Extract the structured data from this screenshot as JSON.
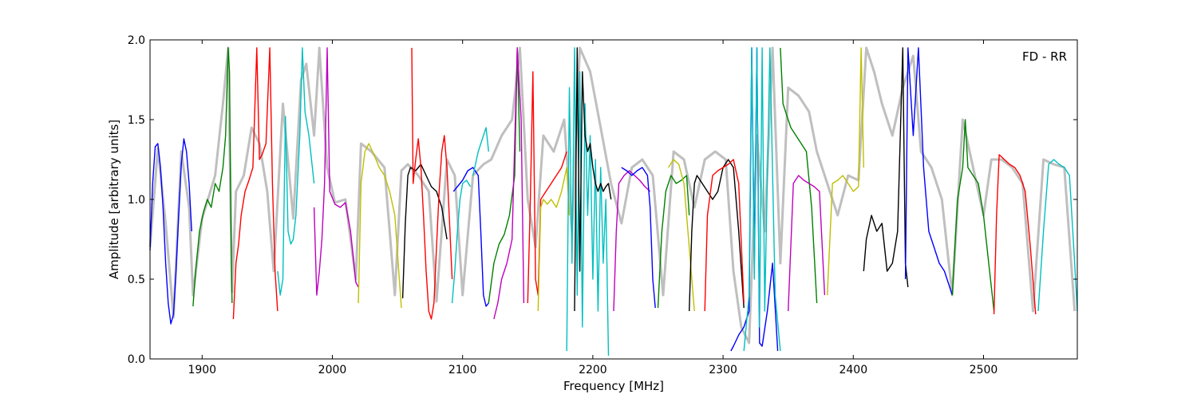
{
  "chart_data": {
    "type": "line",
    "annotation": "FD - RR",
    "xlabel": "Frequency [MHz]",
    "ylabel": "Amplitude [arbitrary units]",
    "xlim": [
      1860,
      2572
    ],
    "ylim": [
      0.0,
      2.0
    ],
    "x_ticks": [
      1900,
      2000,
      2100,
      2200,
      2300,
      2400,
      2500
    ],
    "y_ticks": [
      0.0,
      0.5,
      1.0,
      1.5,
      2.0
    ],
    "x_tick_labels": [
      "1900",
      "2000",
      "2100",
      "2200",
      "2300",
      "2400",
      "2500"
    ],
    "y_tick_labels": [
      "0.0",
      "0.5",
      "1.0",
      "1.5",
      "2.0"
    ],
    "grid": false,
    "background_series": {
      "color": "#bfbfbf",
      "x": [
        1860,
        1866,
        1872,
        1878,
        1884,
        1890,
        1893,
        1900,
        1910,
        1916,
        1920,
        1923,
        1926,
        1932,
        1938,
        1944,
        1950,
        1955,
        1962,
        1970,
        1976,
        1980,
        1986,
        1990,
        1996,
        2002,
        2010,
        2018,
        2022,
        2030,
        2040,
        2048,
        2053,
        2058,
        2066,
        2074,
        2080,
        2088,
        2094,
        2100,
        2108,
        2116,
        2122,
        2130,
        2138,
        2144,
        2150,
        2156,
        2162,
        2170,
        2178,
        2184,
        2190,
        2198,
        2206,
        2214,
        2222,
        2230,
        2238,
        2246,
        2254,
        2262,
        2270,
        2278,
        2286,
        2294,
        2302,
        2308,
        2314,
        2320,
        2326,
        2332,
        2338,
        2344,
        2350,
        2358,
        2366,
        2372,
        2380,
        2388,
        2396,
        2404,
        2410,
        2416,
        2422,
        2430,
        2438,
        2446,
        2452,
        2460,
        2468,
        2476,
        2484,
        2492,
        2500,
        2506,
        2514,
        2522,
        2530,
        2538,
        2546,
        2554,
        2562,
        2570
      ],
      "y": [
        0.7,
        1.32,
        0.85,
        0.26,
        1.3,
        0.95,
        0.4,
        0.88,
        1.15,
        1.6,
        1.95,
        0.42,
        1.05,
        1.15,
        1.45,
        1.35,
        1.05,
        0.55,
        1.6,
        0.88,
        1.75,
        1.85,
        1.4,
        1.95,
        1.2,
        0.98,
        1.0,
        0.5,
        1.35,
        1.3,
        1.2,
        0.4,
        1.18,
        1.22,
        1.15,
        1.05,
        0.36,
        1.25,
        1.15,
        0.4,
        1.15,
        1.22,
        1.25,
        1.4,
        1.5,
        1.95,
        1.0,
        0.7,
        1.4,
        1.3,
        1.5,
        0.8,
        1.95,
        1.8,
        1.45,
        1.1,
        0.85,
        1.2,
        1.25,
        1.15,
        0.4,
        1.3,
        1.25,
        0.95,
        1.25,
        1.3,
        1.25,
        0.55,
        0.2,
        0.1,
        1.4,
        0.8,
        1.95,
        0.6,
        1.7,
        1.65,
        1.55,
        1.3,
        1.1,
        0.9,
        1.15,
        1.12,
        1.95,
        1.8,
        1.6,
        1.4,
        1.7,
        1.9,
        1.3,
        1.2,
        1.0,
        0.4,
        1.5,
        1.2,
        0.9,
        1.25,
        1.25,
        1.2,
        1.1,
        0.3,
        1.25,
        1.22,
        1.2,
        0.3
      ]
    },
    "series": [
      {
        "color": "#0000ff",
        "x": [
          1860,
          1862,
          1864,
          1866,
          1868,
          1870,
          1872,
          1874,
          1876,
          1878,
          1880,
          1882,
          1884,
          1886,
          1888,
          1890,
          1892
        ],
        "y": [
          0.68,
          1.1,
          1.33,
          1.35,
          1.2,
          0.95,
          0.6,
          0.35,
          0.22,
          0.28,
          0.55,
          0.9,
          1.22,
          1.38,
          1.3,
          1.1,
          0.8
        ]
      },
      {
        "color": "#008000",
        "x": [
          1893,
          1895,
          1898,
          1901,
          1904,
          1907,
          1910,
          1913,
          1916,
          1918,
          1920,
          1921,
          1922,
          1923
        ],
        "y": [
          0.33,
          0.55,
          0.8,
          0.92,
          1.0,
          0.95,
          1.1,
          1.05,
          1.2,
          1.4,
          1.95,
          1.8,
          0.9,
          0.35
        ]
      },
      {
        "color": "#ff0000",
        "x": [
          1924,
          1926,
          1928,
          1930,
          1933,
          1936,
          1939,
          1942,
          1944,
          1946,
          1949,
          1952,
          1954,
          1956,
          1958
        ],
        "y": [
          0.25,
          0.6,
          0.72,
          0.9,
          1.05,
          1.12,
          1.2,
          1.95,
          1.25,
          1.28,
          1.35,
          1.95,
          1.1,
          0.55,
          0.3
        ]
      },
      {
        "color": "#00bfbf",
        "x": [
          1958,
          1960,
          1962,
          1964,
          1966,
          1968,
          1970,
          1972,
          1975,
          1977,
          1979,
          1982,
          1986
        ],
        "y": [
          0.55,
          0.4,
          0.5,
          1.52,
          0.8,
          0.72,
          0.75,
          0.9,
          1.4,
          1.95,
          1.55,
          1.4,
          1.1
        ]
      },
      {
        "color": "#bf00bf",
        "x": [
          1986,
          1988,
          1990,
          1992,
          1994,
          1996,
          1998,
          2002,
          2006,
          2010,
          2014,
          2018,
          2020
        ],
        "y": [
          0.95,
          0.4,
          0.55,
          0.75,
          1.1,
          1.95,
          1.05,
          0.97,
          0.95,
          0.98,
          0.8,
          0.48,
          0.45
        ]
      },
      {
        "color": "#bfbf00",
        "x": [
          2020,
          2022,
          2025,
          2028,
          2032,
          2036,
          2040,
          2044,
          2048,
          2051,
          2053
        ],
        "y": [
          0.35,
          1.1,
          1.3,
          1.35,
          1.28,
          1.2,
          1.15,
          1.05,
          0.9,
          0.55,
          0.32
        ]
      },
      {
        "color": "#000000",
        "x": [
          2054,
          2056,
          2058,
          2060,
          2064,
          2068,
          2072,
          2076,
          2080,
          2084,
          2088
        ],
        "y": [
          0.38,
          0.85,
          1.15,
          1.2,
          1.18,
          1.22,
          1.15,
          1.08,
          1.05,
          0.95,
          0.75
        ]
      },
      {
        "color": "#ff0000",
        "x": [
          2061,
          2062,
          2064,
          2066,
          2068,
          2070,
          2072,
          2074,
          2076,
          2078,
          2080,
          2082,
          2084,
          2086,
          2088,
          2090,
          2092
        ],
        "y": [
          1.95,
          1.1,
          1.25,
          1.38,
          1.2,
          0.9,
          0.55,
          0.3,
          0.25,
          0.35,
          0.7,
          1.05,
          1.3,
          1.4,
          1.2,
          0.85,
          0.5
        ]
      },
      {
        "color": "#00bfbf",
        "x": [
          2092,
          2094,
          2096,
          2098,
          2100,
          2103,
          2106
        ],
        "y": [
          0.35,
          0.55,
          0.8,
          1.0,
          1.1,
          1.12,
          1.08
        ]
      },
      {
        "color": "#0000ff",
        "x": [
          2093,
          2096,
          2100,
          2104,
          2108,
          2112,
          2114,
          2116,
          2118,
          2120
        ],
        "y": [
          1.05,
          1.08,
          1.12,
          1.18,
          1.2,
          1.15,
          0.8,
          0.4,
          0.33,
          0.35
        ]
      },
      {
        "color": "#00bfbf",
        "x": [
          2108,
          2112,
          2116,
          2118,
          2120
        ],
        "y": [
          1.15,
          1.3,
          1.4,
          1.45,
          1.3
        ]
      },
      {
        "color": "#008000",
        "x": [
          2120,
          2124,
          2128,
          2132,
          2136,
          2140,
          2142,
          2144
        ],
        "y": [
          0.35,
          0.6,
          0.72,
          0.78,
          0.9,
          1.15,
          1.95,
          1.3
        ]
      },
      {
        "color": "#bf00bf",
        "x": [
          2124,
          2127,
          2130,
          2134,
          2138,
          2142,
          2145,
          2147
        ],
        "y": [
          0.25,
          0.35,
          0.5,
          0.6,
          0.75,
          1.95,
          1.5,
          0.35
        ]
      },
      {
        "color": "#ff0000",
        "x": [
          2150,
          2152,
          2154,
          2156,
          2158,
          2160,
          2164,
          2168,
          2172,
          2176,
          2180
        ],
        "y": [
          0.35,
          1.0,
          1.8,
          0.5,
          0.4,
          1.0,
          1.05,
          1.1,
          1.15,
          1.2,
          1.3
        ]
      },
      {
        "color": "#bfbf00",
        "x": [
          2158,
          2160,
          2162,
          2165,
          2168,
          2172,
          2176,
          2180,
          2182
        ],
        "y": [
          0.3,
          0.95,
          1.0,
          0.97,
          1.0,
          0.95,
          1.05,
          1.2,
          0.9
        ]
      },
      {
        "color": "#00bfbf",
        "x": [
          2180,
          2182,
          2184,
          2186,
          2188,
          2190,
          2192,
          2194,
          2196,
          2198,
          2200,
          2202,
          2204,
          2206,
          2208,
          2210,
          2212
        ],
        "y": [
          0.05,
          1.7,
          0.6,
          1.95,
          0.4,
          1.8,
          0.2,
          1.6,
          0.9,
          1.4,
          0.5,
          1.25,
          0.3,
          1.2,
          0.6,
          1.0,
          0.02
        ]
      },
      {
        "color": "#000000",
        "x": [
          2186,
          2188,
          2190,
          2192,
          2194,
          2196,
          2198,
          2200,
          2202,
          2204,
          2206,
          2208,
          2210,
          2212,
          2214
        ],
        "y": [
          0.3,
          1.95,
          0.55,
          1.8,
          1.4,
          1.3,
          1.35,
          1.2,
          1.1,
          1.05,
          1.1,
          1.05,
          1.08,
          1.1,
          1.0
        ]
      },
      {
        "color": "#bf00bf",
        "x": [
          2216,
          2218,
          2220,
          2224,
          2228,
          2232,
          2236,
          2240,
          2244
        ],
        "y": [
          0.3,
          0.8,
          1.1,
          1.15,
          1.18,
          1.15,
          1.12,
          1.08,
          1.05
        ]
      },
      {
        "color": "#0000ff",
        "x": [
          2222,
          2226,
          2230,
          2234,
          2238,
          2242,
          2244,
          2246,
          2248
        ],
        "y": [
          1.2,
          1.18,
          1.15,
          1.18,
          1.2,
          1.15,
          0.95,
          0.5,
          0.32
        ]
      },
      {
        "color": "#008000",
        "x": [
          2250,
          2253,
          2256,
          2260,
          2264,
          2268,
          2272,
          2274
        ],
        "y": [
          0.32,
          0.8,
          1.05,
          1.15,
          1.1,
          1.12,
          1.15,
          0.9
        ]
      },
      {
        "color": "#bfbf00",
        "x": [
          2258,
          2262,
          2266,
          2270,
          2274,
          2278
        ],
        "y": [
          1.2,
          1.25,
          1.22,
          1.1,
          0.7,
          0.3
        ]
      },
      {
        "color": "#000000",
        "x": [
          2274,
          2276,
          2278,
          2280,
          2284,
          2288,
          2292,
          2296,
          2300,
          2304,
          2308,
          2312,
          2316
        ],
        "y": [
          0.3,
          0.8,
          1.1,
          1.15,
          1.1,
          1.05,
          1.0,
          1.05,
          1.2,
          1.25,
          1.2,
          0.8,
          0.32
        ]
      },
      {
        "color": "#ff0000",
        "x": [
          2286,
          2288,
          2292,
          2296,
          2300,
          2304,
          2308,
          2312,
          2316
        ],
        "y": [
          0.3,
          0.9,
          1.15,
          1.18,
          1.2,
          1.22,
          1.25,
          1.1,
          0.35
        ]
      },
      {
        "color": "#0000ff",
        "x": [
          2306,
          2308,
          2312,
          2316,
          2320,
          2322,
          2324,
          2326,
          2328,
          2330,
          2334,
          2338,
          2342
        ],
        "y": [
          0.05,
          0.08,
          0.15,
          0.2,
          0.3,
          1.95,
          0.6,
          1.95,
          0.1,
          0.08,
          0.3,
          0.6,
          0.05
        ]
      },
      {
        "color": "#00bfbf",
        "x": [
          2316,
          2320,
          2322,
          2324,
          2326,
          2328,
          2330,
          2332,
          2336,
          2340,
          2344
        ],
        "y": [
          0.05,
          0.4,
          1.95,
          0.5,
          1.95,
          0.2,
          1.95,
          0.3,
          1.95,
          0.4,
          0.05
        ]
      },
      {
        "color": "#008000",
        "x": [
          2344,
          2346,
          2348,
          2352,
          2356,
          2360,
          2364,
          2368,
          2372
        ],
        "y": [
          1.95,
          1.6,
          1.55,
          1.45,
          1.4,
          1.35,
          1.3,
          0.95,
          0.35
        ]
      },
      {
        "color": "#bf00bf",
        "x": [
          2350,
          2354,
          2358,
          2362,
          2366,
          2370,
          2374,
          2378
        ],
        "y": [
          0.3,
          1.1,
          1.15,
          1.12,
          1.1,
          1.08,
          1.05,
          0.4
        ]
      },
      {
        "color": "#bfbf00",
        "x": [
          2380,
          2384,
          2388,
          2392,
          2396,
          2400,
          2404,
          2406,
          2408
        ],
        "y": [
          0.4,
          1.1,
          1.12,
          1.15,
          1.1,
          1.05,
          1.08,
          1.95,
          1.2
        ]
      },
      {
        "color": "#000000",
        "x": [
          2408,
          2410,
          2414,
          2418,
          2422,
          2426,
          2430,
          2434,
          2438,
          2440,
          2442
        ],
        "y": [
          0.55,
          0.75,
          0.9,
          0.8,
          0.85,
          0.55,
          0.6,
          0.8,
          1.95,
          0.6,
          0.45
        ]
      },
      {
        "color": "#0000ff",
        "x": [
          2440,
          2442,
          2446,
          2450,
          2454,
          2458,
          2462,
          2466,
          2470,
          2474,
          2476
        ],
        "y": [
          0.5,
          1.95,
          1.4,
          1.95,
          1.2,
          0.8,
          0.7,
          0.6,
          0.55,
          0.45,
          0.4
        ]
      },
      {
        "color": "#008000",
        "x": [
          2476,
          2480,
          2484,
          2486,
          2488,
          2492,
          2496,
          2500,
          2504,
          2508
        ],
        "y": [
          0.4,
          1.0,
          1.2,
          1.5,
          1.2,
          1.15,
          1.1,
          0.9,
          0.6,
          0.3
        ]
      },
      {
        "color": "#ff0000",
        "x": [
          2508,
          2510,
          2512,
          2516,
          2520,
          2524,
          2528,
          2532,
          2536,
          2540
        ],
        "y": [
          0.28,
          0.9,
          1.28,
          1.25,
          1.22,
          1.2,
          1.15,
          1.05,
          0.7,
          0.28
        ]
      },
      {
        "color": "#00bfbf",
        "x": [
          2542,
          2546,
          2550,
          2554,
          2558,
          2562,
          2566,
          2570,
          2572
        ],
        "y": [
          0.3,
          0.8,
          1.22,
          1.25,
          1.22,
          1.2,
          1.15,
          0.6,
          0.3
        ]
      }
    ]
  }
}
